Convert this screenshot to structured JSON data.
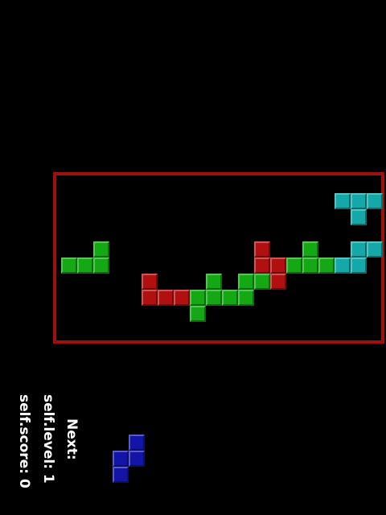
{
  "hud": {
    "score_text": "self.score: 0",
    "level_text": "self.level: 1",
    "next_text": "Next:"
  },
  "colors": {
    "background": "#000000",
    "border": "#a00f0f",
    "green": "#14a814",
    "red": "#b01010",
    "cyan": "#14a8a8",
    "blue": "#1414a8"
  },
  "board": {
    "columns": 20,
    "rows": 9,
    "cells": [
      {
        "col": 17,
        "row": 1,
        "color": "cyan"
      },
      {
        "col": 18,
        "row": 1,
        "color": "cyan"
      },
      {
        "col": 19,
        "row": 1,
        "color": "cyan"
      },
      {
        "col": 18,
        "row": 2,
        "color": "cyan"
      },
      {
        "col": 18,
        "row": 4,
        "color": "cyan"
      },
      {
        "col": 19,
        "row": 4,
        "color": "cyan"
      },
      {
        "col": 17,
        "row": 5,
        "color": "cyan"
      },
      {
        "col": 18,
        "row": 5,
        "color": "cyan"
      },
      {
        "col": 2,
        "row": 4,
        "color": "green"
      },
      {
        "col": 0,
        "row": 5,
        "color": "green"
      },
      {
        "col": 1,
        "row": 5,
        "color": "green"
      },
      {
        "col": 2,
        "row": 5,
        "color": "green"
      },
      {
        "col": 12,
        "row": 4,
        "color": "red"
      },
      {
        "col": 12,
        "row": 5,
        "color": "red"
      },
      {
        "col": 13,
        "row": 5,
        "color": "red"
      },
      {
        "col": 13,
        "row": 6,
        "color": "red"
      },
      {
        "col": 15,
        "row": 4,
        "color": "green"
      },
      {
        "col": 14,
        "row": 5,
        "color": "green"
      },
      {
        "col": 15,
        "row": 5,
        "color": "green"
      },
      {
        "col": 16,
        "row": 5,
        "color": "green"
      },
      {
        "col": 5,
        "row": 6,
        "color": "red"
      },
      {
        "col": 5,
        "row": 7,
        "color": "red"
      },
      {
        "col": 6,
        "row": 7,
        "color": "red"
      },
      {
        "col": 7,
        "row": 7,
        "color": "red"
      },
      {
        "col": 9,
        "row": 6,
        "color": "green"
      },
      {
        "col": 8,
        "row": 7,
        "color": "green"
      },
      {
        "col": 9,
        "row": 7,
        "color": "green"
      },
      {
        "col": 10,
        "row": 7,
        "color": "green"
      },
      {
        "col": 8,
        "row": 8,
        "color": "green"
      },
      {
        "col": 11,
        "row": 6,
        "color": "green"
      },
      {
        "col": 12,
        "row": 6,
        "color": "green"
      },
      {
        "col": 11,
        "row": 7,
        "color": "green"
      }
    ]
  },
  "next_piece": {
    "color": "blue",
    "cells": [
      {
        "col": 1,
        "row": 0
      },
      {
        "col": 0,
        "row": 1
      },
      {
        "col": 1,
        "row": 1
      },
      {
        "col": 0,
        "row": 2
      }
    ]
  }
}
